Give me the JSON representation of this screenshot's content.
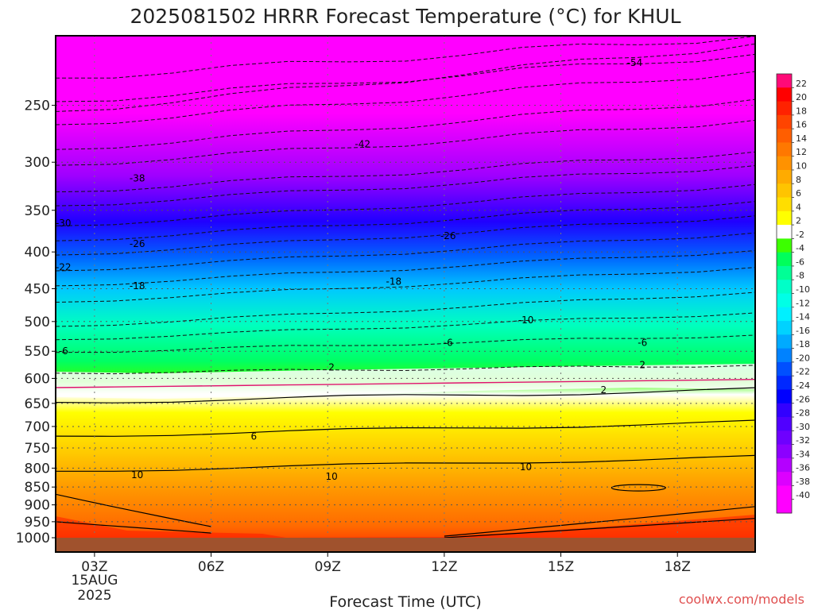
{
  "chart_data": {
    "type": "heatmap",
    "title": "2025081502 HRRR Forecast Temperature (°C) for KHUL",
    "xlabel": "Forecast Time (UTC)",
    "ylabel": "",
    "credit": "coolwx.com/models",
    "x_ticks": [
      "03Z",
      "06Z",
      "09Z",
      "12Z",
      "15Z",
      "18Z"
    ],
    "x_tick_sublabels": [
      "15AUG",
      "2025"
    ],
    "x_range_hours": [
      2,
      20
    ],
    "y_ticks_hpa": [
      250,
      300,
      350,
      400,
      450,
      500,
      550,
      600,
      650,
      700,
      750,
      800,
      850,
      900,
      950,
      1000
    ],
    "y_range_hpa": [
      200,
      1000
    ],
    "y_scale": "pressure",
    "grid": true,
    "colorbar": {
      "labels": [
        22,
        20,
        18,
        16,
        14,
        12,
        10,
        8,
        6,
        4,
        2,
        -2,
        -4,
        -6,
        -8,
        -10,
        -12,
        -14,
        -16,
        -18,
        -20,
        -22,
        -24,
        -26,
        -28,
        -30,
        -32,
        -34,
        -36,
        -38,
        -40
      ],
      "colors": [
        "#ff0a78",
        "#ff0000",
        "#ff2200",
        "#ff4400",
        "#ff5e00",
        "#ff7800",
        "#ff9200",
        "#ffab00",
        "#ffc400",
        "#ffde00",
        "#ffff00",
        "#ffffff",
        "#3cff00",
        "#00ff5a",
        "#00ff96",
        "#00ffc8",
        "#00ffe6",
        "#00f0ff",
        "#00d2ff",
        "#00aaff",
        "#0082ff",
        "#0050ff",
        "#0028ff",
        "#0000ff",
        "#3200ff",
        "#5000ff",
        "#6e00ff",
        "#8c00ff",
        "#b400ff",
        "#dc00ff",
        "#ff00ff",
        "#ff00ff"
      ]
    },
    "contour_labels": [
      {
        "value": "-54",
        "time_h": 16.9,
        "pressure_hpa": 218
      },
      {
        "value": "-42",
        "time_h": 9.9,
        "pressure_hpa": 283
      },
      {
        "value": "-38",
        "time_h": 4.1,
        "pressure_hpa": 316
      },
      {
        "value": "-30",
        "time_h": 2.2,
        "pressure_hpa": 365
      },
      {
        "value": "-26",
        "time_h": 4.1,
        "pressure_hpa": 390
      },
      {
        "value": "-26",
        "time_h": 12.1,
        "pressure_hpa": 380
      },
      {
        "value": "-22",
        "time_h": 2.2,
        "pressure_hpa": 420
      },
      {
        "value": "-18",
        "time_h": 4.1,
        "pressure_hpa": 446
      },
      {
        "value": "-18",
        "time_h": 10.7,
        "pressure_hpa": 440
      },
      {
        "value": "-10",
        "time_h": 14.1,
        "pressure_hpa": 498
      },
      {
        "value": "-6",
        "time_h": 2.2,
        "pressure_hpa": 550
      },
      {
        "value": "-6",
        "time_h": 12.1,
        "pressure_hpa": 535
      },
      {
        "value": "-6",
        "time_h": 17.1,
        "pressure_hpa": 535
      },
      {
        "value": "2",
        "time_h": 9.1,
        "pressure_hpa": 579
      },
      {
        "value": "2",
        "time_h": 17.1,
        "pressure_hpa": 575
      },
      {
        "value": "2",
        "time_h": 16.1,
        "pressure_hpa": 623
      },
      {
        "value": "6",
        "time_h": 7.1,
        "pressure_hpa": 723
      },
      {
        "value": "10",
        "time_h": 4.1,
        "pressure_hpa": 818
      },
      {
        "value": "10",
        "time_h": 9.1,
        "pressure_hpa": 822
      },
      {
        "value": "10",
        "time_h": 14.1,
        "pressure_hpa": 797
      }
    ]
  }
}
